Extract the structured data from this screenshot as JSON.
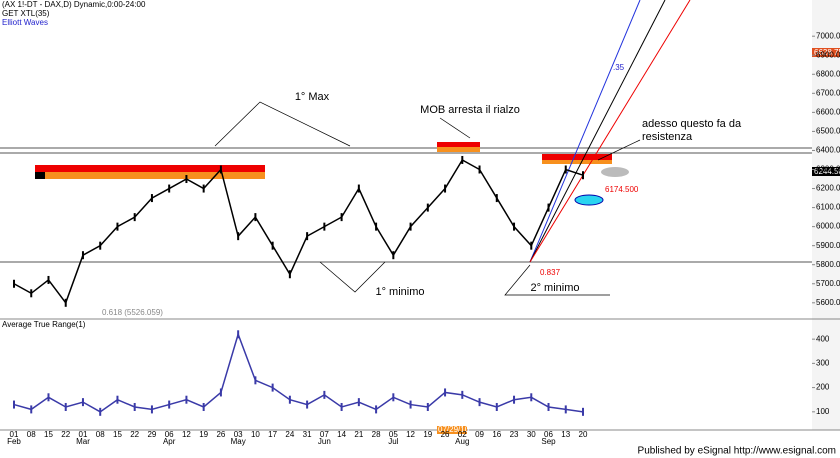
{
  "chart_data": [
    {
      "type": "line",
      "title": "(AX 1!-DT - DAX,D) Dynamic,0:00-24:00",
      "subtitle": "GET XTL(35)",
      "legend": "Elliott Waves",
      "categories": [
        "01",
        "08",
        "15",
        "22",
        "01",
        "08",
        "15",
        "22",
        "29",
        "06",
        "12",
        "19",
        "26",
        "03",
        "10",
        "17",
        "24",
        "31",
        "07",
        "14",
        "21",
        "28",
        "05",
        "12",
        "19",
        "26",
        "02",
        "09",
        "16",
        "23",
        "30",
        "06",
        "13",
        "20"
      ],
      "months": [
        "Feb",
        null,
        null,
        null,
        "Mar",
        null,
        null,
        null,
        null,
        "Apr",
        null,
        null,
        null,
        "May",
        null,
        null,
        null,
        null,
        "Jun",
        null,
        null,
        null,
        "Jul",
        null,
        null,
        null,
        "Aug",
        null,
        null,
        null,
        null,
        "Sep",
        null,
        null
      ],
      "series": [
        {
          "name": "DAX",
          "color": "#000000",
          "values": [
            5700,
            5650,
            5720,
            5600,
            5850,
            5900,
            6000,
            6050,
            6150,
            6200,
            6250,
            6200,
            6300,
            5950,
            6050,
            5900,
            5750,
            5950,
            6000,
            6050,
            6200,
            6000,
            5850,
            6000,
            6100,
            6200,
            6350,
            6300,
            6150,
            6000,
            5900,
            6100,
            6300,
            6270
          ]
        }
      ],
      "ylim": [
        5515,
        7190
      ],
      "yticks": [
        {
          "value": 5600,
          "label": "5600.00"
        },
        {
          "value": 5700,
          "label": "5700.00"
        },
        {
          "value": 5800,
          "label": "5800.00"
        },
        {
          "value": 5900,
          "label": "5900.00"
        },
        {
          "value": 6000,
          "label": "6000.00"
        },
        {
          "value": 6100,
          "label": "6100.00"
        },
        {
          "value": 6200,
          "label": "6200.00"
        },
        {
          "value": 6300,
          "label": "6300.00"
        },
        {
          "value": 6400,
          "label": "6400.00"
        },
        {
          "value": 6500,
          "label": "6500.00"
        },
        {
          "value": 6600,
          "label": "6600.00"
        },
        {
          "value": 6700,
          "label": "6700.00"
        },
        {
          "value": 6800,
          "label": "6800.00"
        },
        {
          "value": 6900,
          "label": "6900.00"
        },
        {
          "value": 7000,
          "label": "7000.00"
        }
      ],
      "annotations": [
        "1° Max",
        "MOB arresta il rialzo",
        "adesso questo fa da resistenza",
        "1° minimo",
        "2° minimo",
        "0.837",
        "0.618 (5526.059)",
        "6174.500",
        "6244.50",
        "6628.75",
        "07/29/10",
        ".35"
      ]
    },
    {
      "type": "line",
      "title": "Average True Range(1)",
      "series": [
        {
          "name": "ATR",
          "color": "#3a3aa8",
          "values": [
            130,
            110,
            160,
            120,
            140,
            100,
            150,
            120,
            110,
            130,
            150,
            120,
            180,
            420,
            230,
            200,
            150,
            130,
            170,
            120,
            140,
            110,
            160,
            130,
            120,
            180,
            170,
            140,
            120,
            150,
            160,
            120,
            110,
            100
          ]
        }
      ],
      "ylim": [
        25,
        479
      ],
      "yticks": [
        100,
        200,
        300,
        400
      ]
    }
  ],
  "footer": "Published by eSignal  http://www.esignal.com"
}
